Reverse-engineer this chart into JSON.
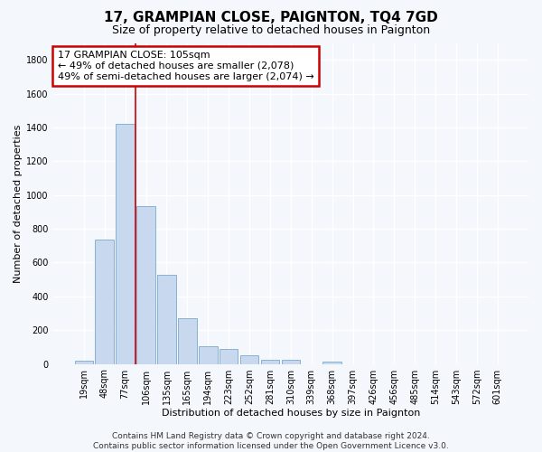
{
  "title": "17, GRAMPIAN CLOSE, PAIGNTON, TQ4 7GD",
  "subtitle": "Size of property relative to detached houses in Paignton",
  "xlabel": "Distribution of detached houses by size in Paignton",
  "ylabel": "Number of detached properties",
  "categories": [
    "19sqm",
    "48sqm",
    "77sqm",
    "106sqm",
    "135sqm",
    "165sqm",
    "194sqm",
    "223sqm",
    "252sqm",
    "281sqm",
    "310sqm",
    "339sqm",
    "368sqm",
    "397sqm",
    "426sqm",
    "456sqm",
    "485sqm",
    "514sqm",
    "543sqm",
    "572sqm",
    "601sqm"
  ],
  "values": [
    20,
    735,
    1420,
    935,
    530,
    270,
    105,
    90,
    50,
    25,
    25,
    0,
    15,
    0,
    0,
    0,
    0,
    0,
    0,
    0,
    0
  ],
  "bar_color": "#c8d8ee",
  "bar_edge_color": "#7aaacc",
  "redline_index": 3,
  "annotation_line1": "17 GRAMPIAN CLOSE: 105sqm",
  "annotation_line2": "← 49% of detached houses are smaller (2,078)",
  "annotation_line3": "49% of semi-detached houses are larger (2,074) →",
  "annotation_box_color": "#ffffff",
  "annotation_box_edge": "#cc0000",
  "ylim": [
    0,
    1900
  ],
  "yticks": [
    0,
    200,
    400,
    600,
    800,
    1000,
    1200,
    1400,
    1600,
    1800
  ],
  "footer": "Contains HM Land Registry data © Crown copyright and database right 2024.\nContains public sector information licensed under the Open Government Licence v3.0.",
  "background_color": "#f4f7fc",
  "grid_color": "#ffffff",
  "title_fontsize": 11,
  "subtitle_fontsize": 9,
  "axis_label_fontsize": 8,
  "tick_fontsize": 7,
  "annotation_fontsize": 8,
  "footer_fontsize": 6.5
}
